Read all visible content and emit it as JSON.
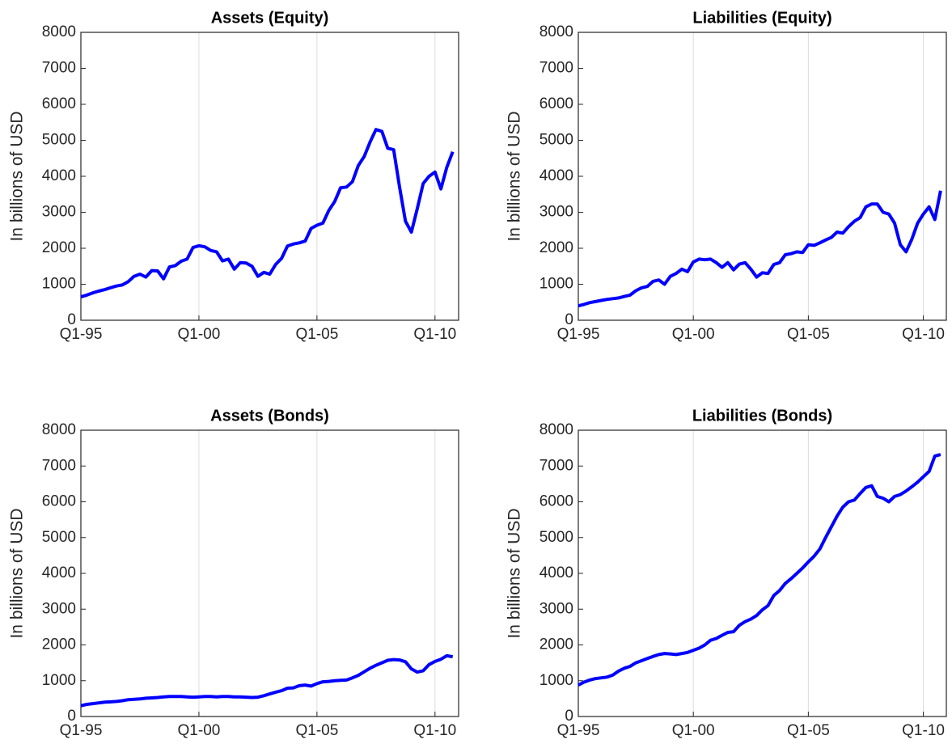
{
  "chart_data": [
    {
      "type": "line",
      "title": "Assets (Equity)",
      "ylabel": "In billions of USD",
      "color": "#0000ff",
      "grid": "x",
      "categories": [
        "Q1-95",
        null,
        null,
        null,
        null,
        null,
        null,
        null,
        null,
        null,
        null,
        null,
        null,
        null,
        null,
        null,
        null,
        null,
        null,
        null,
        "Q1-00",
        null,
        null,
        null,
        null,
        null,
        null,
        null,
        null,
        null,
        null,
        null,
        null,
        null,
        null,
        null,
        null,
        null,
        null,
        null,
        "Q1-05",
        null,
        null,
        null,
        null,
        null,
        null,
        null,
        null,
        null,
        null,
        null,
        null,
        null,
        null,
        null,
        null,
        null,
        null,
        null,
        "Q1-10",
        null,
        null,
        null
      ],
      "values": [
        650,
        700,
        760,
        810,
        850,
        900,
        950,
        980,
        1070,
        1220,
        1280,
        1200,
        1380,
        1370,
        1150,
        1480,
        1520,
        1640,
        1700,
        2020,
        2070,
        2040,
        1940,
        1900,
        1650,
        1700,
        1420,
        1600,
        1590,
        1500,
        1220,
        1330,
        1280,
        1550,
        1720,
        2060,
        2120,
        2150,
        2200,
        2550,
        2640,
        2700,
        3050,
        3300,
        3680,
        3700,
        3850,
        4300,
        4550,
        4950,
        5300,
        5250,
        4780,
        4740,
        3700,
        2750,
        2450,
        3100,
        3800,
        4000,
        4120,
        3650,
        4250,
        4680
      ],
      "ylim": [
        0,
        8000
      ],
      "yticks": [
        0,
        1000,
        2000,
        3000,
        4000,
        5000,
        6000,
        7000,
        8000
      ]
    },
    {
      "type": "line",
      "title": "Liabilities (Equity)",
      "ylabel": "In billions of USD",
      "color": "#0000ff",
      "grid": "x",
      "categories": [
        "Q1-95",
        null,
        null,
        null,
        null,
        null,
        null,
        null,
        null,
        null,
        null,
        null,
        null,
        null,
        null,
        null,
        null,
        null,
        null,
        null,
        "Q1-00",
        null,
        null,
        null,
        null,
        null,
        null,
        null,
        null,
        null,
        null,
        null,
        null,
        null,
        null,
        null,
        null,
        null,
        null,
        null,
        "Q1-05",
        null,
        null,
        null,
        null,
        null,
        null,
        null,
        null,
        null,
        null,
        null,
        null,
        null,
        null,
        null,
        null,
        null,
        null,
        null,
        "Q1-10",
        null,
        null,
        null
      ],
      "values": [
        400,
        440,
        490,
        520,
        550,
        580,
        600,
        620,
        660,
        700,
        820,
        900,
        940,
        1080,
        1120,
        1000,
        1220,
        1300,
        1420,
        1350,
        1620,
        1700,
        1680,
        1700,
        1600,
        1470,
        1600,
        1400,
        1560,
        1600,
        1420,
        1200,
        1320,
        1300,
        1550,
        1600,
        1820,
        1850,
        1900,
        1880,
        2100,
        2080,
        2150,
        2230,
        2300,
        2450,
        2420,
        2600,
        2750,
        2850,
        3150,
        3230,
        3230,
        3000,
        2950,
        2700,
        2100,
        1900,
        2250,
        2700,
        2950,
        3150,
        2800,
        3600
      ],
      "ylim": [
        0,
        8000
      ],
      "yticks": [
        0,
        1000,
        2000,
        3000,
        4000,
        5000,
        6000,
        7000,
        8000
      ]
    },
    {
      "type": "line",
      "title": "Assets (Bonds)",
      "ylabel": "In billions of USD",
      "color": "#0000ff",
      "grid": "x",
      "categories": [
        "Q1-95",
        null,
        null,
        null,
        null,
        null,
        null,
        null,
        null,
        null,
        null,
        null,
        null,
        null,
        null,
        null,
        null,
        null,
        null,
        null,
        "Q1-00",
        null,
        null,
        null,
        null,
        null,
        null,
        null,
        null,
        null,
        null,
        null,
        null,
        null,
        null,
        null,
        null,
        null,
        null,
        null,
        "Q1-05",
        null,
        null,
        null,
        null,
        null,
        null,
        null,
        null,
        null,
        null,
        null,
        null,
        null,
        null,
        null,
        null,
        null,
        null,
        null,
        "Q1-10",
        null,
        null,
        null
      ],
      "values": [
        300,
        340,
        360,
        380,
        400,
        410,
        420,
        440,
        470,
        480,
        490,
        510,
        520,
        530,
        550,
        560,
        560,
        560,
        550,
        540,
        550,
        560,
        560,
        550,
        560,
        560,
        550,
        550,
        540,
        530,
        540,
        580,
        630,
        680,
        720,
        790,
        800,
        860,
        880,
        850,
        920,
        970,
        980,
        1000,
        1010,
        1020,
        1080,
        1150,
        1250,
        1350,
        1430,
        1500,
        1570,
        1590,
        1580,
        1530,
        1330,
        1240,
        1280,
        1450,
        1540,
        1600,
        1700,
        1670
      ],
      "ylim": [
        0,
        8000
      ],
      "yticks": [
        0,
        1000,
        2000,
        3000,
        4000,
        5000,
        6000,
        7000,
        8000
      ]
    },
    {
      "type": "line",
      "title": "Liabilities (Bonds)",
      "ylabel": "In billions of USD",
      "color": "#0000ff",
      "grid": "x",
      "categories": [
        "Q1-95",
        null,
        null,
        null,
        null,
        null,
        null,
        null,
        null,
        null,
        null,
        null,
        null,
        null,
        null,
        null,
        null,
        null,
        null,
        null,
        "Q1-00",
        null,
        null,
        null,
        null,
        null,
        null,
        null,
        null,
        null,
        null,
        null,
        null,
        null,
        null,
        null,
        null,
        null,
        null,
        null,
        "Q1-05",
        null,
        null,
        null,
        null,
        null,
        null,
        null,
        null,
        null,
        null,
        null,
        null,
        null,
        null,
        null,
        null,
        null,
        null,
        null,
        "Q1-10",
        null,
        null,
        null
      ],
      "values": [
        880,
        960,
        1020,
        1060,
        1080,
        1100,
        1160,
        1270,
        1350,
        1400,
        1500,
        1560,
        1620,
        1680,
        1730,
        1760,
        1750,
        1730,
        1760,
        1790,
        1850,
        1910,
        2000,
        2130,
        2180,
        2270,
        2350,
        2370,
        2550,
        2650,
        2720,
        2820,
        2980,
        3100,
        3380,
        3520,
        3720,
        3850,
        4000,
        4150,
        4320,
        4480,
        4680,
        5000,
        5300,
        5600,
        5850,
        6000,
        6050,
        6230,
        6400,
        6450,
        6150,
        6100,
        6000,
        6150,
        6200,
        6300,
        6420,
        6550,
        6700,
        6850,
        7280,
        7320
      ],
      "ylim": [
        0,
        8000
      ],
      "yticks": [
        0,
        1000,
        2000,
        3000,
        4000,
        5000,
        6000,
        7000,
        8000
      ]
    }
  ]
}
